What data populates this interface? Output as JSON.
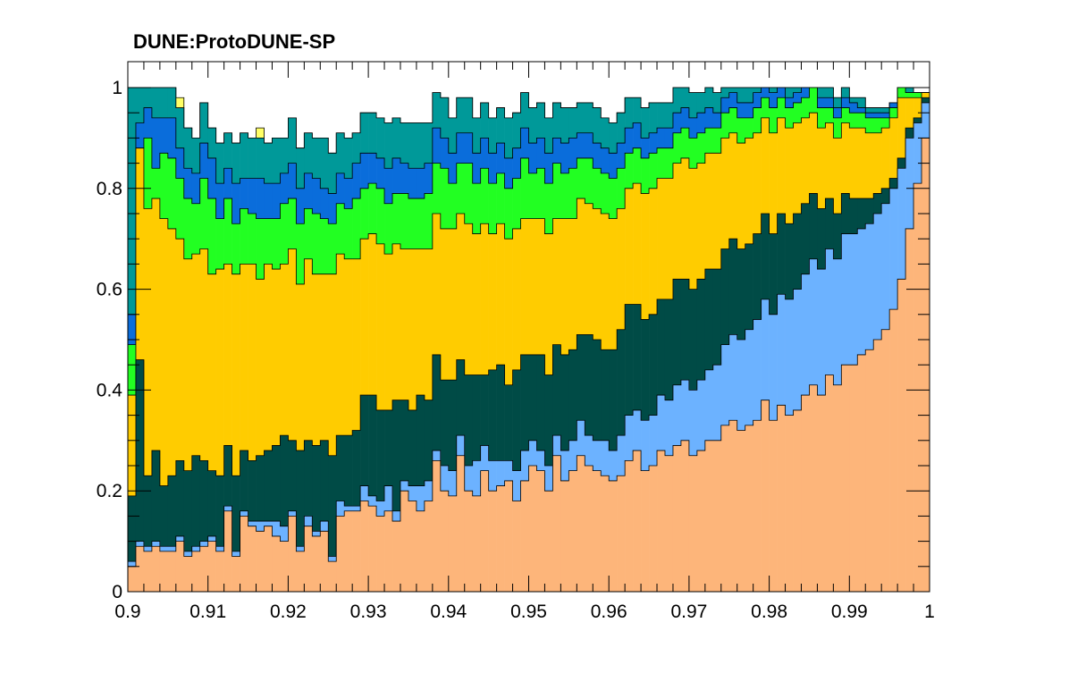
{
  "chart_data": {
    "type": "area",
    "title": "DUNE:ProtoDUNE-SP",
    "xlabel": "",
    "ylabel": "",
    "xlim": [
      0.9,
      1.0
    ],
    "ylim": [
      0,
      1.0
    ],
    "x_ticks": [
      "0.9",
      "0.91",
      "0.92",
      "0.93",
      "0.94",
      "0.95",
      "0.96",
      "0.97",
      "0.98",
      "0.99",
      "1"
    ],
    "y_ticks": [
      "0",
      "0.2",
      "0.4",
      "0.6",
      "0.8",
      "1"
    ],
    "bins": 100,
    "stacked": true,
    "grid": false,
    "legend": "none",
    "bin_width": 0.001,
    "series": [
      {
        "color": "#fdb57a",
        "values": [
          0.05,
          0.09,
          0.08,
          0.09,
          0.08,
          0.08,
          0.1,
          0.07,
          0.08,
          0.09,
          0.1,
          0.08,
          0.16,
          0.07,
          0.15,
          0.13,
          0.12,
          0.13,
          0.11,
          0.1,
          0.15,
          0.08,
          0.13,
          0.11,
          0.12,
          0.06,
          0.15,
          0.16,
          0.16,
          0.18,
          0.17,
          0.15,
          0.16,
          0.14,
          0.2,
          0.18,
          0.16,
          0.18,
          0.26,
          0.2,
          0.19,
          0.27,
          0.2,
          0.19,
          0.24,
          0.2,
          0.21,
          0.22,
          0.18,
          0.22,
          0.25,
          0.24,
          0.2,
          0.27,
          0.22,
          0.24,
          0.27,
          0.25,
          0.24,
          0.23,
          0.22,
          0.23,
          0.26,
          0.28,
          0.24,
          0.25,
          0.28,
          0.27,
          0.29,
          0.3,
          0.27,
          0.28,
          0.3,
          0.3,
          0.33,
          0.34,
          0.32,
          0.33,
          0.34,
          0.38,
          0.34,
          0.37,
          0.35,
          0.36,
          0.39,
          0.41,
          0.39,
          0.43,
          0.41,
          0.45,
          0.45,
          0.47,
          0.48,
          0.5,
          0.52,
          0.56,
          0.62,
          0.72,
          0.81,
          0.9
        ]
      },
      {
        "color": "#6cb2ff",
        "values": [
          0.01,
          0.01,
          0.01,
          0.01,
          0.01,
          0.01,
          0.01,
          0.01,
          0.01,
          0.01,
          0.01,
          0.01,
          0.01,
          0.01,
          0.01,
          0.01,
          0.02,
          0.01,
          0.03,
          0.03,
          0.01,
          0.01,
          0.02,
          0.01,
          0.02,
          0.01,
          0.03,
          0.01,
          0.01,
          0.03,
          0.02,
          0.03,
          0.05,
          0.02,
          0.02,
          0.03,
          0.05,
          0.04,
          0.02,
          0.05,
          0.05,
          0.04,
          0.05,
          0.07,
          0.05,
          0.06,
          0.05,
          0.04,
          0.06,
          0.06,
          0.05,
          0.04,
          0.05,
          0.04,
          0.06,
          0.06,
          0.07,
          0.06,
          0.06,
          0.07,
          0.06,
          0.08,
          0.09,
          0.08,
          0.1,
          0.1,
          0.11,
          0.11,
          0.12,
          0.12,
          0.13,
          0.14,
          0.14,
          0.15,
          0.16,
          0.17,
          0.18,
          0.19,
          0.2,
          0.2,
          0.21,
          0.22,
          0.23,
          0.24,
          0.24,
          0.25,
          0.25,
          0.25,
          0.25,
          0.26,
          0.26,
          0.25,
          0.25,
          0.25,
          0.25,
          0.24,
          0.22,
          0.18,
          0.12,
          0.07
        ]
      },
      {
        "color": "#004b46",
        "values": [
          0.13,
          0.36,
          0.14,
          0.18,
          0.12,
          0.14,
          0.15,
          0.16,
          0.18,
          0.16,
          0.13,
          0.14,
          0.12,
          0.15,
          0.12,
          0.12,
          0.13,
          0.14,
          0.15,
          0.18,
          0.14,
          0.19,
          0.15,
          0.17,
          0.16,
          0.2,
          0.13,
          0.14,
          0.15,
          0.18,
          0.2,
          0.18,
          0.15,
          0.22,
          0.16,
          0.15,
          0.18,
          0.16,
          0.19,
          0.17,
          0.18,
          0.15,
          0.18,
          0.17,
          0.14,
          0.18,
          0.19,
          0.15,
          0.2,
          0.19,
          0.17,
          0.19,
          0.18,
          0.18,
          0.19,
          0.18,
          0.17,
          0.2,
          0.2,
          0.18,
          0.2,
          0.21,
          0.22,
          0.21,
          0.2,
          0.2,
          0.19,
          0.2,
          0.21,
          0.2,
          0.2,
          0.2,
          0.2,
          0.19,
          0.19,
          0.19,
          0.18,
          0.17,
          0.17,
          0.17,
          0.16,
          0.16,
          0.15,
          0.15,
          0.14,
          0.13,
          0.12,
          0.1,
          0.09,
          0.08,
          0.07,
          0.06,
          0.05,
          0.04,
          0.03,
          0.02,
          0.02,
          0.02,
          0.01,
          0.01
        ]
      },
      {
        "color": "#ffcc00",
        "values": [
          0.2,
          0.42,
          0.53,
          0.5,
          0.53,
          0.49,
          0.44,
          0.42,
          0.4,
          0.42,
          0.39,
          0.41,
          0.36,
          0.4,
          0.37,
          0.39,
          0.35,
          0.37,
          0.35,
          0.34,
          0.38,
          0.33,
          0.36,
          0.34,
          0.33,
          0.36,
          0.36,
          0.35,
          0.34,
          0.31,
          0.32,
          0.33,
          0.31,
          0.31,
          0.3,
          0.32,
          0.29,
          0.3,
          0.28,
          0.3,
          0.3,
          0.29,
          0.3,
          0.28,
          0.3,
          0.27,
          0.28,
          0.29,
          0.28,
          0.27,
          0.27,
          0.27,
          0.28,
          0.25,
          0.27,
          0.26,
          0.27,
          0.26,
          0.26,
          0.27,
          0.26,
          0.24,
          0.23,
          0.24,
          0.25,
          0.25,
          0.24,
          0.24,
          0.23,
          0.24,
          0.24,
          0.23,
          0.23,
          0.23,
          0.22,
          0.21,
          0.21,
          0.21,
          0.2,
          0.19,
          0.2,
          0.19,
          0.19,
          0.18,
          0.17,
          0.16,
          0.16,
          0.15,
          0.15,
          0.14,
          0.14,
          0.14,
          0.13,
          0.12,
          0.12,
          0.12,
          0.12,
          0.06,
          0.04,
          0.01
        ]
      },
      {
        "color": "#22ff22",
        "values": [
          0.1,
          0.0,
          0.14,
          0.06,
          0.13,
          0.14,
          0.12,
          0.12,
          0.1,
          0.14,
          0.15,
          0.1,
          0.13,
          0.1,
          0.11,
          0.1,
          0.12,
          0.09,
          0.1,
          0.12,
          0.1,
          0.12,
          0.1,
          0.12,
          0.11,
          0.1,
          0.1,
          0.1,
          0.12,
          0.1,
          0.1,
          0.11,
          0.1,
          0.1,
          0.11,
          0.1,
          0.1,
          0.11,
          0.1,
          0.12,
          0.09,
          0.1,
          0.12,
          0.1,
          0.11,
          0.1,
          0.1,
          0.1,
          0.1,
          0.12,
          0.09,
          0.1,
          0.1,
          0.11,
          0.09,
          0.1,
          0.08,
          0.09,
          0.08,
          0.08,
          0.08,
          0.08,
          0.07,
          0.07,
          0.07,
          0.07,
          0.06,
          0.06,
          0.06,
          0.06,
          0.06,
          0.06,
          0.05,
          0.05,
          0.05,
          0.05,
          0.05,
          0.04,
          0.05,
          0.04,
          0.05,
          0.04,
          0.04,
          0.04,
          0.04,
          0.05,
          0.04,
          0.03,
          0.04,
          0.03,
          0.03,
          0.03,
          0.03,
          0.03,
          0.02,
          0.02,
          0.02,
          0.01,
          0.01,
          0.0
        ]
      },
      {
        "color": "#0a6ddb",
        "values": [
          0.06,
          0.05,
          0.06,
          0.1,
          0.07,
          0.08,
          0.06,
          0.06,
          0.06,
          0.07,
          0.08,
          0.07,
          0.06,
          0.08,
          0.06,
          0.07,
          0.08,
          0.07,
          0.07,
          0.06,
          0.07,
          0.07,
          0.07,
          0.07,
          0.06,
          0.06,
          0.06,
          0.06,
          0.07,
          0.07,
          0.06,
          0.06,
          0.07,
          0.07,
          0.06,
          0.06,
          0.06,
          0.06,
          0.07,
          0.06,
          0.06,
          0.06,
          0.06,
          0.06,
          0.06,
          0.06,
          0.06,
          0.06,
          0.06,
          0.06,
          0.06,
          0.06,
          0.06,
          0.05,
          0.06,
          0.06,
          0.05,
          0.05,
          0.05,
          0.05,
          0.05,
          0.05,
          0.05,
          0.05,
          0.04,
          0.04,
          0.04,
          0.04,
          0.04,
          0.04,
          0.04,
          0.04,
          0.04,
          0.03,
          0.03,
          0.03,
          0.03,
          0.03,
          0.03,
          0.03,
          0.03,
          0.02,
          0.02,
          0.02,
          0.02,
          0.02,
          0.02,
          0.02,
          0.02,
          0.02,
          0.02,
          0.01,
          0.01,
          0.01,
          0.01,
          0.01,
          0.01,
          0.0,
          0.0,
          0.0
        ]
      },
      {
        "color": "#009999",
        "values": [
          0.45,
          0.07,
          0.04,
          0.06,
          0.06,
          0.06,
          0.08,
          0.08,
          0.07,
          0.08,
          0.06,
          0.08,
          0.07,
          0.08,
          0.09,
          0.08,
          0.08,
          0.08,
          0.09,
          0.07,
          0.09,
          0.08,
          0.08,
          0.08,
          0.1,
          0.08,
          0.08,
          0.08,
          0.06,
          0.08,
          0.08,
          0.08,
          0.09,
          0.08,
          0.08,
          0.09,
          0.09,
          0.08,
          0.07,
          0.08,
          0.07,
          0.07,
          0.07,
          0.07,
          0.07,
          0.07,
          0.07,
          0.08,
          0.07,
          0.07,
          0.07,
          0.07,
          0.07,
          0.07,
          0.07,
          0.06,
          0.06,
          0.06,
          0.07,
          0.06,
          0.06,
          0.06,
          0.06,
          0.05,
          0.06,
          0.06,
          0.05,
          0.05,
          0.05,
          0.04,
          0.05,
          0.04,
          0.04,
          0.04,
          0.04,
          0.04,
          0.03,
          0.03,
          0.02,
          0.03,
          0.02,
          0.02,
          0.02,
          0.01,
          0.02,
          0.02,
          0.02,
          0.02,
          0.02,
          0.02,
          0.01,
          0.02,
          0.01,
          0.01,
          0.01,
          0.0,
          0.0,
          0.01,
          0.0,
          0.0
        ]
      },
      {
        "color": "#ffff66",
        "values": [
          0.0,
          0.0,
          0.0,
          0.0,
          0.0,
          0.0,
          0.02,
          0.0,
          0.0,
          0.0,
          0.0,
          0.0,
          0.0,
          0.0,
          0.0,
          0.0,
          0.02,
          0.0,
          0.0,
          0.0,
          0.0,
          0.0,
          0.0,
          0.0,
          0.0,
          0.0,
          0.0,
          0.0,
          0.0,
          0.0,
          0.0,
          0.0,
          0.0,
          0.0,
          0.0,
          0.0,
          0.0,
          0.0,
          0.0,
          0.0,
          0.0,
          0.0,
          0.0,
          0.0,
          0.0,
          0.0,
          0.0,
          0.0,
          0.0,
          0.0,
          0.0,
          0.0,
          0.0,
          0.0,
          0.0,
          0.0,
          0.0,
          0.0,
          0.0,
          0.0,
          0.0,
          0.0,
          0.0,
          0.0,
          0.0,
          0.0,
          0.0,
          0.0,
          0.0,
          0.0,
          0.0,
          0.0,
          0.0,
          0.0,
          0.0,
          0.0,
          0.0,
          0.0,
          0.0,
          0.0,
          0.0,
          0.0,
          0.0,
          0.0,
          0.0,
          0.0,
          0.0,
          0.0,
          0.0,
          0.0,
          0.0,
          0.0,
          0.0,
          0.0,
          0.0,
          0.0,
          0.0,
          0.0,
          0.0,
          0.0
        ]
      }
    ]
  }
}
